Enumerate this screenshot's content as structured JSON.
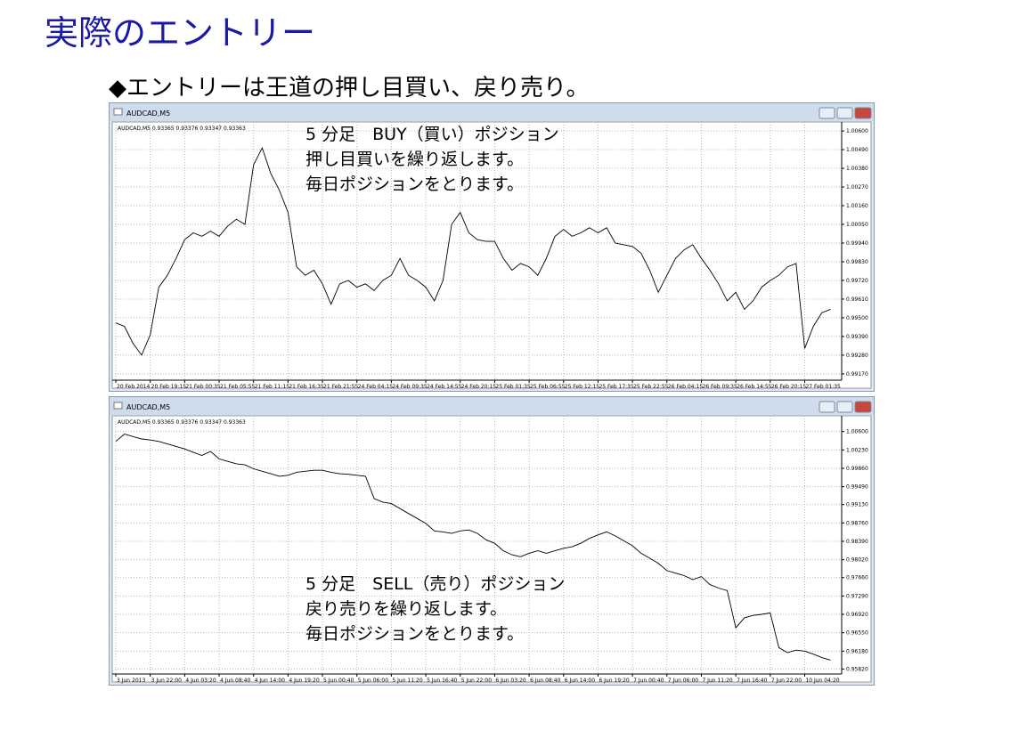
{
  "header": {
    "title": "実際のエントリー",
    "subtitle": "◆エントリーは王道の押し目買い、戻り売り。"
  },
  "chart_data": [
    {
      "type": "line",
      "window_title": "AUDCAD,M5",
      "info": "AUDCAD,M5  0.93365 0.93376 0.93347 0.93363",
      "annotations": [
        "5 分足　BUY（買い）ポジション",
        "押し目買いを繰り返します。",
        "毎日ポジションをとります。"
      ],
      "color": "#000000",
      "grid": true,
      "categories": [
        "20 Feb 2014",
        null,
        null,
        null,
        "20 Feb 19:15",
        null,
        null,
        null,
        "21 Feb 00:35",
        null,
        null,
        null,
        "21 Feb 05:55",
        null,
        null,
        null,
        "21 Feb 11:15",
        null,
        null,
        null,
        "21 Feb 16:35",
        null,
        null,
        null,
        "21 Feb 21:55",
        null,
        null,
        null,
        "24 Feb 04:15",
        null,
        null,
        null,
        "24 Feb 09:35",
        null,
        null,
        null,
        "24 Feb 14:55",
        null,
        null,
        null,
        "24 Feb 20:15",
        null,
        null,
        null,
        "25 Feb 01:35",
        null,
        null,
        null,
        "25 Feb 06:55",
        null,
        null,
        null,
        "25 Feb 12:15",
        null,
        null,
        null,
        "25 Feb 17:35",
        null,
        null,
        null,
        "25 Feb 22:55",
        null,
        null,
        null,
        "26 Feb 04:15",
        null,
        null,
        null,
        "26 Feb 09:35",
        null,
        null,
        null,
        "26 Feb 14:55",
        null,
        null,
        null,
        "26 Feb 20:15",
        null,
        null,
        null,
        "27 Feb 01:35",
        null,
        null,
        null
      ],
      "values": [
        0.9947,
        0.9945,
        0.9935,
        0.9928,
        0.994,
        0.9968,
        0.9975,
        0.9985,
        0.9996,
        1.0,
        0.9998,
        1.0001,
        0.9998,
        1.0004,
        1.0008,
        1.0005,
        1.004,
        1.005,
        1.0035,
        1.0025,
        1.0012,
        0.998,
        0.9975,
        0.9978,
        0.997,
        0.9958,
        0.997,
        0.9972,
        0.9968,
        0.997,
        0.9966,
        0.9972,
        0.9975,
        0.9985,
        0.9975,
        0.9972,
        0.9968,
        0.996,
        0.9972,
        1.0005,
        1.0012,
        1.0,
        0.9996,
        0.9995,
        0.9995,
        0.9985,
        0.9978,
        0.9982,
        0.998,
        0.9975,
        0.9985,
        0.9998,
        1.0002,
        0.9998,
        1.0,
        1.0003,
        1.0,
        1.0003,
        0.9994,
        0.9993,
        0.9992,
        0.9988,
        0.9978,
        0.9965,
        0.9975,
        0.9985,
        0.999,
        0.9993,
        0.9985,
        0.9978,
        0.997,
        0.996,
        0.9965,
        0.9955,
        0.996,
        0.9968,
        0.9972,
        0.9975,
        0.998,
        0.9982,
        0.9932,
        0.9945,
        0.9953,
        0.9955
      ],
      "ylim": [
        0.99138,
        1.00637
      ],
      "yticks": [
        {
          "value": 1.006,
          "label": "1.00600"
        },
        {
          "value": 1.0049,
          "label": "1.00490"
        },
        {
          "value": 1.0038,
          "label": "1.00380"
        },
        {
          "value": 1.0027,
          "label": "1.00270"
        },
        {
          "value": 1.0016,
          "label": "1.00160"
        },
        {
          "value": 1.0005,
          "label": "1.00050"
        },
        {
          "value": 0.9994,
          "label": "0.99940"
        },
        {
          "value": 0.9983,
          "label": "0.99830"
        },
        {
          "value": 0.9972,
          "label": "0.99720"
        },
        {
          "value": 0.9961,
          "label": "0.99610"
        },
        {
          "value": 0.995,
          "label": "0.99500"
        },
        {
          "value": 0.9939,
          "label": "0.99390"
        },
        {
          "value": 0.9928,
          "label": "0.99280"
        },
        {
          "value": 0.9917,
          "label": "0.99170"
        }
      ]
    },
    {
      "type": "line",
      "window_title": "AUDCAD,M5",
      "info": "AUDCAD,M5  0.93365 0.93376 0.93347 0.93363",
      "annotations": [
        "5 分足　SELL（売り）ポジション",
        "戻り売りを繰り返します。",
        "毎日ポジションをとります。"
      ],
      "color": "#000000",
      "grid": true,
      "categories": [
        "3 Jun 2013",
        null,
        null,
        null,
        "3 Jun 22:00",
        null,
        null,
        null,
        "4 Jun 03:20",
        null,
        null,
        null,
        "4 Jun 08:40",
        null,
        null,
        null,
        "4 Jun 14:00",
        null,
        null,
        null,
        "4 Jun 19:20",
        null,
        null,
        null,
        "5 Jun 00:40",
        null,
        null,
        null,
        "5 Jun 06:00",
        null,
        null,
        null,
        "5 Jun 11:20",
        null,
        null,
        null,
        "5 Jun 16:40",
        null,
        null,
        null,
        "5 Jun 22:00",
        null,
        null,
        null,
        "6 Jun 03:20",
        null,
        null,
        null,
        "6 Jun 08:40",
        null,
        null,
        null,
        "6 Jun 14:00",
        null,
        null,
        null,
        "6 Jun 19:20",
        null,
        null,
        null,
        "7 Jun 00:40",
        null,
        null,
        null,
        "7 Jun 06:00",
        null,
        null,
        null,
        "7 Jun 11:20",
        null,
        null,
        null,
        "7 Jun 16:40",
        null,
        null,
        null,
        "7 Jun 22:00",
        null,
        null,
        null,
        "10 Jun 04:20",
        null,
        null,
        null
      ],
      "values": [
        1.004,
        1.0055,
        1.005,
        1.0045,
        1.0043,
        1.004,
        1.0035,
        1.003,
        1.0025,
        1.0018,
        1.0012,
        1.002,
        1.0005,
        1.0,
        0.9995,
        0.9993,
        0.9985,
        0.998,
        0.9975,
        0.997,
        0.9972,
        0.9978,
        0.998,
        0.9982,
        0.9982,
        0.9978,
        0.9975,
        0.9974,
        0.9972,
        0.997,
        0.9925,
        0.9918,
        0.9915,
        0.9905,
        0.9895,
        0.9885,
        0.9875,
        0.986,
        0.9858,
        0.9855,
        0.986,
        0.9862,
        0.9855,
        0.9842,
        0.9835,
        0.982,
        0.9812,
        0.9808,
        0.9815,
        0.982,
        0.9815,
        0.982,
        0.9825,
        0.9828,
        0.9835,
        0.9845,
        0.9852,
        0.9858,
        0.985,
        0.984,
        0.983,
        0.9815,
        0.9805,
        0.9795,
        0.978,
        0.9775,
        0.977,
        0.9762,
        0.9768,
        0.9752,
        0.9745,
        0.974,
        0.9665,
        0.9685,
        0.969,
        0.9692,
        0.9695,
        0.9625,
        0.9615,
        0.962,
        0.9618,
        0.9612,
        0.9605,
        0.96
      ],
      "ylim": [
        0.95738,
        1.00863
      ],
      "yticks": [
        {
          "value": 1.006,
          "label": "1.00600"
        },
        {
          "value": 1.0023,
          "label": "1.00230"
        },
        {
          "value": 0.9986,
          "label": "0.99860"
        },
        {
          "value": 0.9949,
          "label": "0.99490"
        },
        {
          "value": 0.9913,
          "label": "0.99130"
        },
        {
          "value": 0.9876,
          "label": "0.98760"
        },
        {
          "value": 0.9839,
          "label": "0.98390"
        },
        {
          "value": 0.9802,
          "label": "0.98020"
        },
        {
          "value": 0.9766,
          "label": "0.97660"
        },
        {
          "value": 0.9729,
          "label": "0.97290"
        },
        {
          "value": 0.9692,
          "label": "0.96920"
        },
        {
          "value": 0.9655,
          "label": "0.96550"
        },
        {
          "value": 0.9618,
          "label": "0.96180"
        },
        {
          "value": 0.9582,
          "label": "0.95820"
        }
      ]
    }
  ]
}
